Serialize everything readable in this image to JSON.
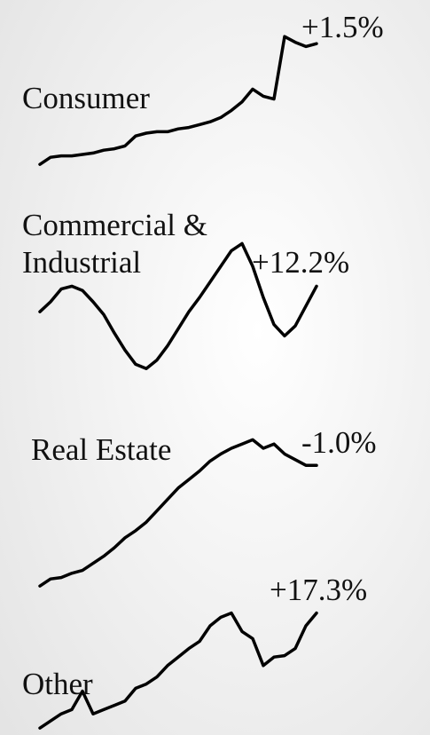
{
  "chart_data": [
    {
      "type": "line",
      "name": [
        "Consumer"
      ],
      "annotation": "+1.5%",
      "ylim": [
        0,
        100
      ],
      "values": [
        3,
        8,
        9,
        9,
        10,
        11,
        13,
        14,
        16,
        23,
        25,
        26,
        26,
        28,
        29,
        31,
        33,
        36,
        41,
        47,
        56,
        51,
        49,
        93,
        89,
        86,
        88
      ]
    },
    {
      "type": "line",
      "name": [
        "Commercial &",
        "Industrial"
      ],
      "annotation": "+12.2%",
      "ylim": [
        0,
        100
      ],
      "values": [
        43,
        50,
        59,
        61,
        58,
        50,
        41,
        28,
        16,
        6,
        3,
        9,
        19,
        31,
        43,
        53,
        64,
        75,
        86,
        91,
        75,
        53,
        34,
        26,
        33,
        47,
        61
      ]
    },
    {
      "type": "line",
      "name": [
        "Real Estate"
      ],
      "annotation": "-1.0%",
      "ylim": [
        0,
        100
      ],
      "values": [
        3,
        8,
        9,
        12,
        14,
        19,
        24,
        30,
        37,
        42,
        48,
        56,
        64,
        72,
        78,
        84,
        91,
        96,
        100,
        103,
        106,
        100,
        103,
        96,
        92,
        88,
        88
      ]
    },
    {
      "type": "line",
      "name": [
        "Other"
      ],
      "annotation": "+17.3%",
      "ylim": [
        0,
        100
      ],
      "values": [
        3,
        8,
        13,
        16,
        29,
        13,
        16,
        19,
        22,
        31,
        34,
        39,
        47,
        53,
        59,
        64,
        75,
        81,
        84,
        71,
        66,
        47,
        53,
        54,
        59,
        75,
        84
      ]
    }
  ]
}
